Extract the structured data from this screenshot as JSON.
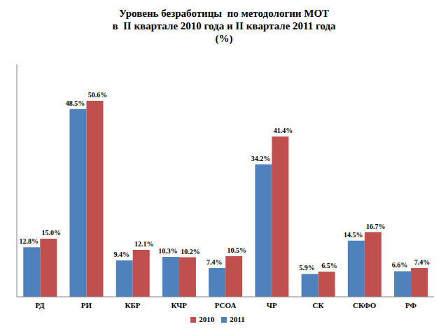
{
  "chart_data": {
    "type": "bar",
    "title": "Уровень безработицы  по методологии МОТ\nв  II квартале 2010 года и II квартале 2011 года\n(%)",
    "categories": [
      "РД",
      "РИ",
      "КБР",
      "КЧР",
      "РСОА",
      "ЧР",
      "СК",
      "СКФО",
      "РФ"
    ],
    "series": [
      {
        "name": "2011",
        "color": "#4f81bd",
        "values": [
          12.8,
          48.5,
          9.4,
          10.3,
          7.4,
          34.2,
          5.9,
          14.5,
          6.6
        ],
        "value_labels": [
          "12.8%",
          "48.5%",
          "9.4%",
          "10.3%",
          "7.4%",
          "34.2%",
          "5.9%",
          "14.5%",
          "6.6%"
        ]
      },
      {
        "name": "2010",
        "color": "#c0504d",
        "values": [
          15.0,
          50.6,
          12.1,
          10.2,
          10.5,
          41.4,
          6.5,
          16.7,
          7.4
        ],
        "value_labels": [
          "15.0%",
          "50.6%",
          "12.1%",
          "10.2%",
          "10.5%",
          "41.4%",
          "6.5%",
          "16.7%",
          "7.4%"
        ]
      }
    ],
    "ylim": [
      0,
      60
    ],
    "data_labels": true,
    "tick_labels": "x",
    "legend": "bottom",
    "grid": false
  }
}
